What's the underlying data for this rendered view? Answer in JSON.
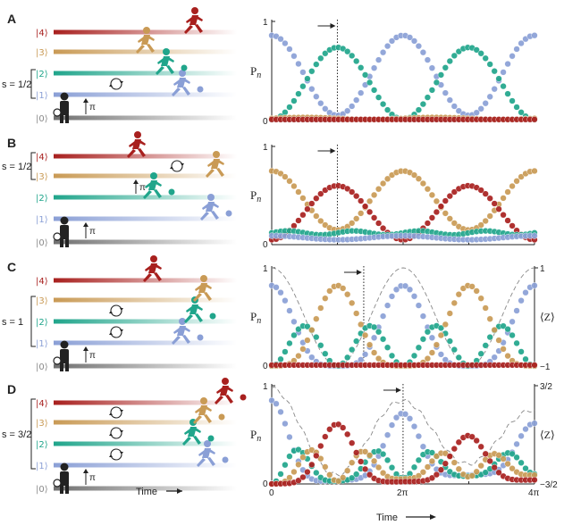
{
  "colors": {
    "red": "#a8201e",
    "gold": "#c99a55",
    "teal": "#20a58b",
    "blue": "#8a9fd6",
    "gray": "#8a8a8a",
    "dark": "#222222"
  },
  "level_labels": [
    "|0⟩",
    "|1⟩",
    "|2⟩",
    "|3⟩",
    "|4⟩"
  ],
  "pi_label": "π",
  "left_time_label": "Time",
  "panels": [
    {
      "letter": "A",
      "spin_label": "s = 1/2",
      "bracket_levels": [
        1,
        2
      ],
      "runner_levels": [
        1,
        2,
        3,
        4
      ],
      "swap_between": [
        [
          1,
          2
        ]
      ],
      "pi_pulses": [
        0
      ],
      "has_z_axis": false
    },
    {
      "letter": "B",
      "spin_label": "s = 1/2",
      "bracket_levels": [
        3,
        4
      ],
      "runner_levels": [
        1,
        2,
        3,
        4
      ],
      "swap_between": [
        [
          3,
          4
        ]
      ],
      "pi_pulses": [
        0,
        2
      ],
      "has_z_axis": false
    },
    {
      "letter": "C",
      "spin_label": "s = 1",
      "bracket_levels": [
        1,
        3
      ],
      "runner_levels": [
        1,
        2,
        3,
        4
      ],
      "swap_between": [
        [
          2,
          3
        ],
        [
          1,
          2
        ]
      ],
      "pi_pulses": [
        0
      ],
      "has_z_axis": true,
      "z_top": "1",
      "z_bottom": "−1"
    },
    {
      "letter": "D",
      "spin_label": "s = 3/2",
      "bracket_levels": [
        1,
        4
      ],
      "runner_levels": [
        1,
        2,
        3,
        4
      ],
      "swap_between": [
        [
          3,
          4
        ],
        [
          2,
          3
        ],
        [
          1,
          2
        ]
      ],
      "pi_pulses": [
        0
      ],
      "has_z_axis": true,
      "z_top": "3/2",
      "z_bottom": "−3/2"
    }
  ],
  "chart_data": [
    {
      "panel": "A",
      "type": "scatter",
      "xlabel": "",
      "ylabel": "Pn",
      "xlim": [
        0,
        12.566
      ],
      "ylim": [
        0,
        1
      ],
      "y_tick_labels": [
        "0",
        "1"
      ],
      "marker_x": 3.14,
      "series": [
        {
          "color": "blue",
          "formula": "0.8*(cos(t/2))^2+0.06",
          "values_sampled": [
            0.86,
            0.43,
            0.06,
            0.43,
            0.86
          ]
        },
        {
          "color": "teal",
          "formula": "0.72*(sin(t/2))^2+0.02",
          "values_sampled": [
            0.02,
            0.38,
            0.74,
            0.38,
            0.02
          ]
        },
        {
          "color": "gold",
          "formula": "0.03",
          "values_sampled": [
            0.03,
            0.03,
            0.03,
            0.03,
            0.03
          ]
        },
        {
          "color": "red",
          "formula": "0.02",
          "values_sampled": [
            0.02,
            0.02,
            0.02,
            0.02,
            0.02
          ]
        }
      ]
    },
    {
      "panel": "B",
      "type": "scatter",
      "xlabel": "",
      "ylabel": "Pn",
      "xlim": [
        0,
        12.566
      ],
      "ylim": [
        0,
        1
      ],
      "y_tick_labels": [
        "0",
        "1"
      ],
      "marker_x": 3.14,
      "series": [
        {
          "color": "gold",
          "formula": "0.6*(cos(t/2))^2+0.15",
          "values_sampled": [
            0.75,
            0.45,
            0.15,
            0.45,
            0.75
          ]
        },
        {
          "color": "red",
          "formula": "0.55*(sin(t/2))^2+0.05",
          "values_sampled": [
            0.05,
            0.33,
            0.6,
            0.33,
            0.05
          ]
        },
        {
          "color": "teal",
          "formula": "0.12",
          "values_sampled": [
            0.12,
            0.12,
            0.12,
            0.12,
            0.12
          ]
        },
        {
          "color": "blue",
          "formula": "0.07",
          "values_sampled": [
            0.07,
            0.07,
            0.07,
            0.07,
            0.07
          ]
        }
      ]
    },
    {
      "panel": "C",
      "type": "scatter",
      "xlabel": "",
      "ylabel": "Pn",
      "xlim": [
        0,
        12.566
      ],
      "ylim": [
        0,
        1
      ],
      "y_tick_labels": [
        "0",
        "1"
      ],
      "y2_tick_labels": [
        "1",
        "−1"
      ],
      "y2_label": "⟨Z⟩",
      "marker_x": 4.4,
      "series": [
        {
          "color": "blue",
          "formula": "0.82*(cos(t/2))^4",
          "values_sampled": [
            0.82,
            0.2,
            0.0,
            0.2,
            0.82
          ]
        },
        {
          "color": "teal",
          "formula": "1.64*(cos(t/2))^2*(sin(t/2))^2",
          "values_sampled": [
            0.0,
            0.41,
            0.0,
            0.41,
            0.0
          ]
        },
        {
          "color": "gold",
          "formula": "0.82*(sin(t/2))^4",
          "values_sampled": [
            0.0,
            0.2,
            0.82,
            0.2,
            0.0
          ]
        },
        {
          "color": "red",
          "formula": "0.01",
          "values_sampled": [
            0.01,
            0.01,
            0.01,
            0.01,
            0.01
          ]
        },
        {
          "color": "gray",
          "style": "dashed",
          "formula": "<Z>=cos(t)",
          "values_sampled": [
            1,
            0,
            -1,
            0,
            1
          ]
        }
      ]
    },
    {
      "panel": "D",
      "type": "scatter",
      "xlabel": "Time",
      "ylabel": "Pn",
      "xlim": [
        0,
        12.566
      ],
      "ylim": [
        0,
        1
      ],
      "x_tick_labels": [
        "0",
        "2π",
        "4π"
      ],
      "y_tick_labels": [
        "0",
        "1"
      ],
      "y2_tick_labels": [
        "3/2",
        "−3/2"
      ],
      "y2_label": "⟨Z⟩",
      "marker_x": 6.28,
      "series": [
        {
          "color": "blue",
          "formula": "0.85*(cos(t/2))^6 (damped)",
          "values_sampled": [
            0.85,
            0.1,
            0.0,
            0.55,
            0.62
          ]
        },
        {
          "color": "teal",
          "formula": "3c^4s^2 (damped)",
          "values_sampled": [
            0.0,
            0.35,
            0.02,
            0.48,
            0.1
          ]
        },
        {
          "color": "gold",
          "formula": "3c^2s^4 (damped)",
          "values_sampled": [
            0.0,
            0.4,
            0.05,
            0.25,
            0.08
          ]
        },
        {
          "color": "red",
          "formula": "0.65*(sin(t/2))^6 (damped)",
          "values_sampled": [
            0.0,
            0.1,
            0.65,
            0.1,
            0.02
          ]
        },
        {
          "color": "gray",
          "style": "dashed",
          "formula": "<Z>",
          "values_sampled": [
            1.4,
            0.0,
            -1.3,
            0.3,
            1.0
          ]
        }
      ]
    }
  ]
}
